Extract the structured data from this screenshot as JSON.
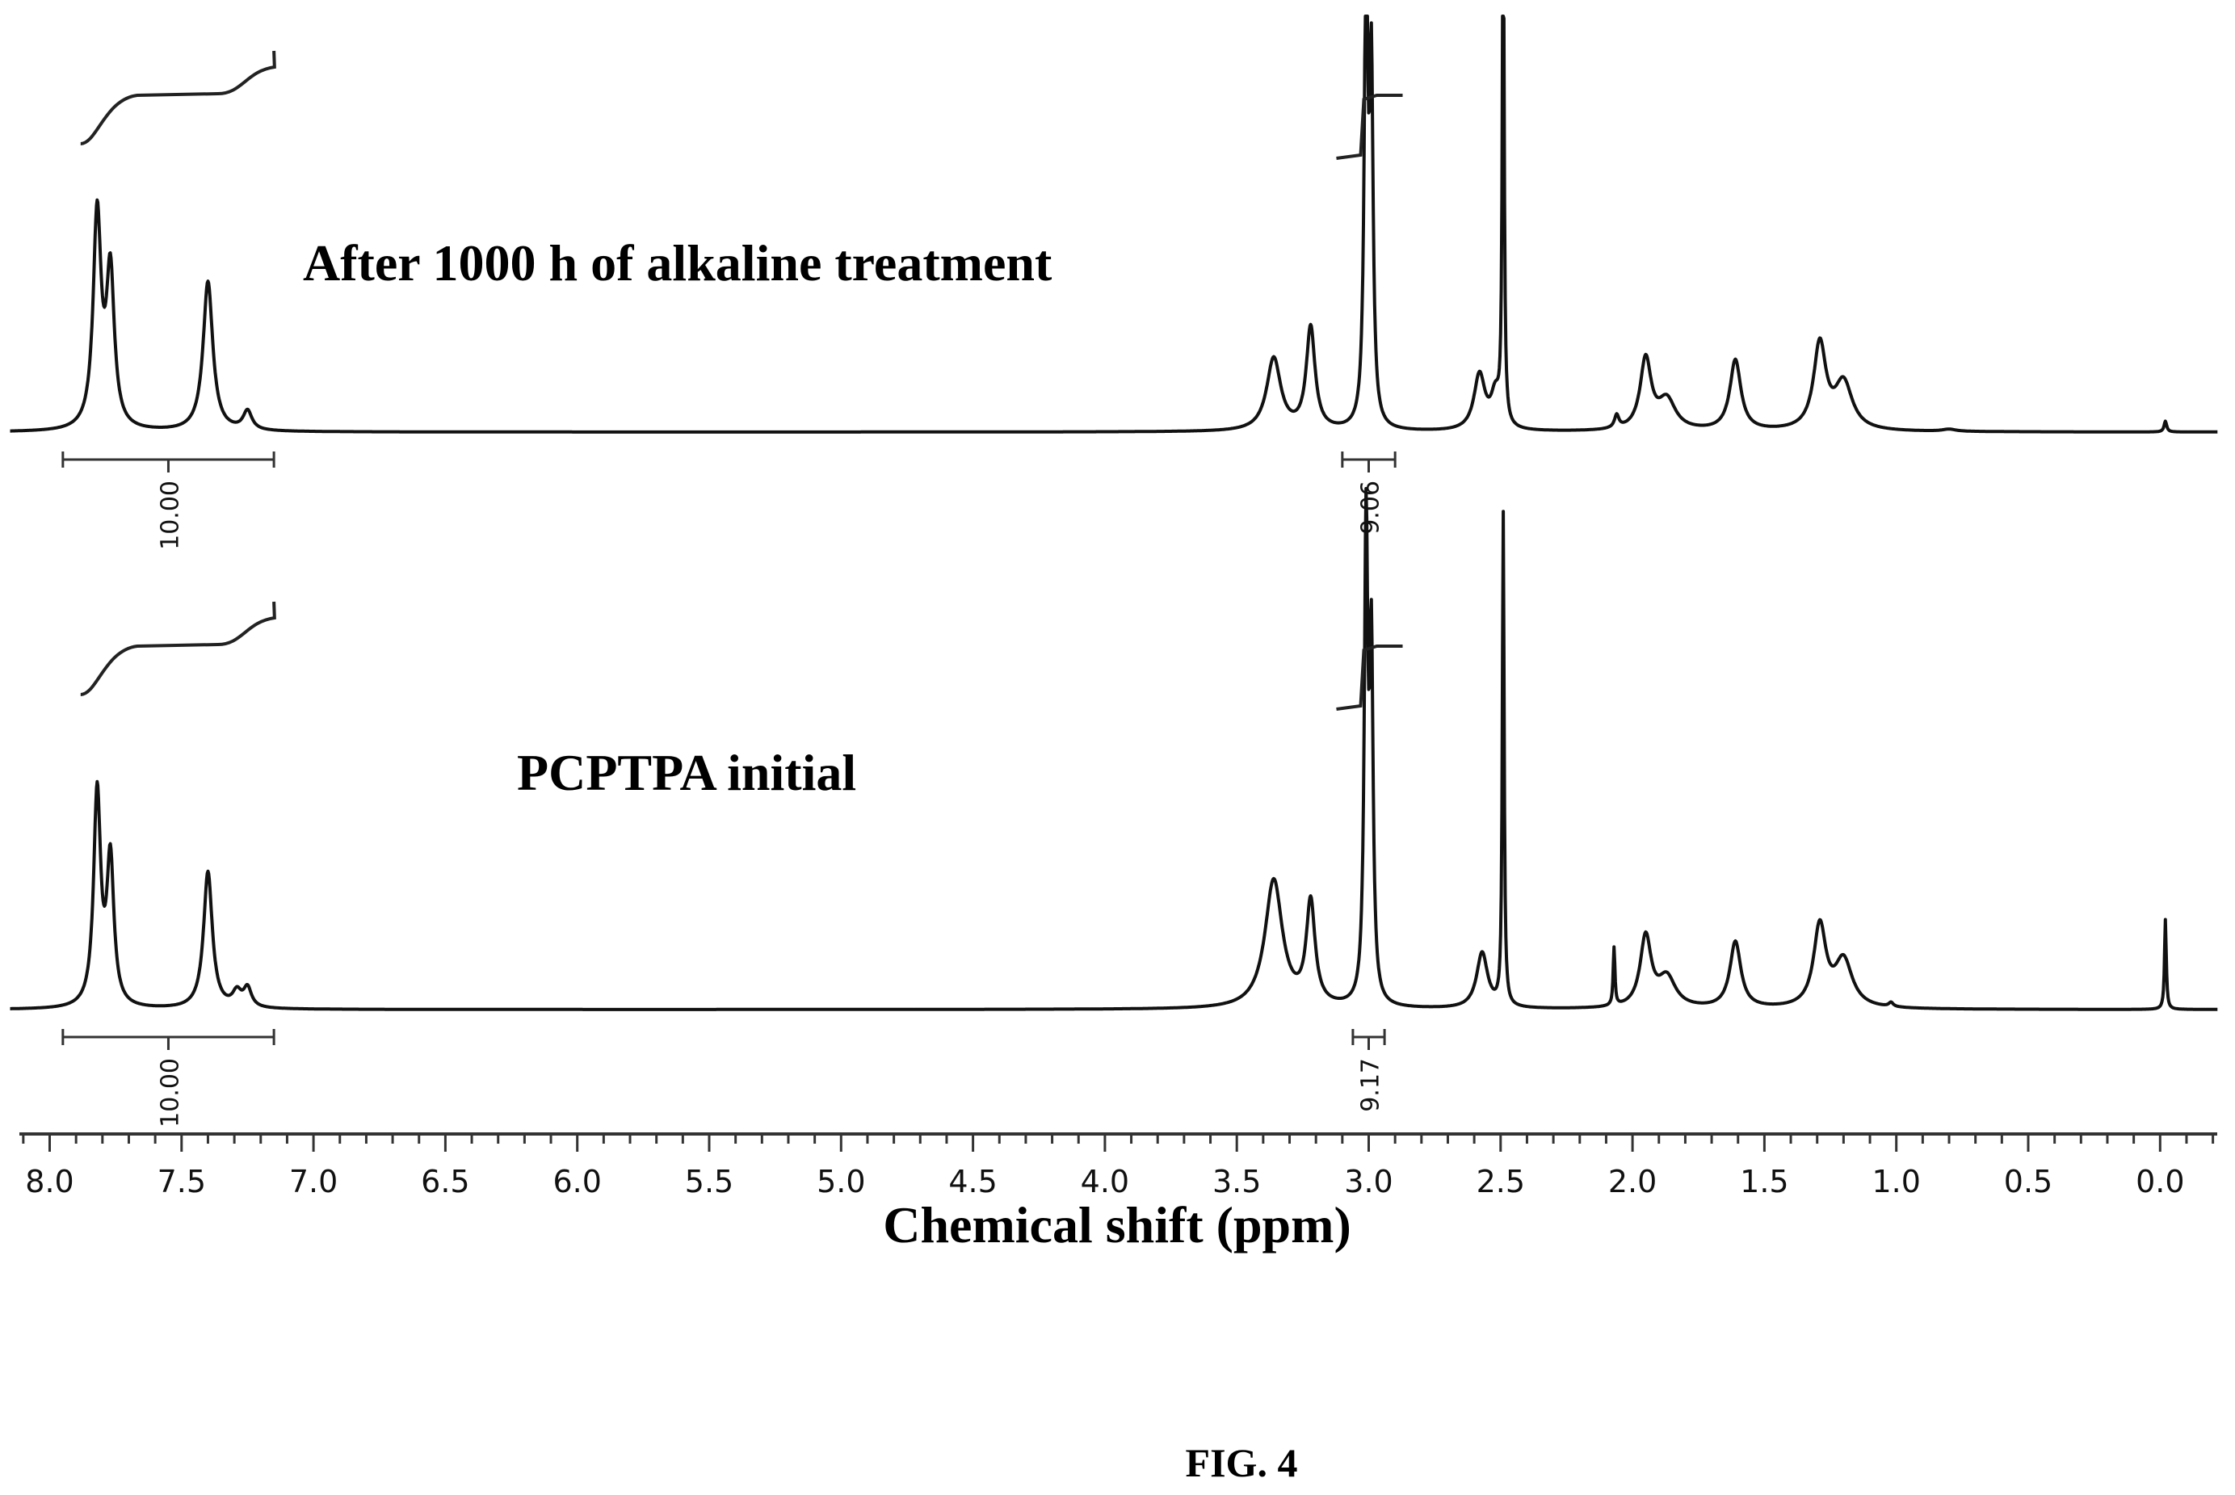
{
  "chart_data": {
    "type": "line",
    "xlabel": "Chemical shift (ppm)",
    "ylabel": "",
    "xlim": [
      8.1,
      -0.2
    ],
    "x_reversed": true,
    "x_ticks": [
      "8.0",
      "7.5",
      "7.0",
      "6.5",
      "6.0",
      "5.5",
      "5.0",
      "4.5",
      "4.0",
      "3.5",
      "3.0",
      "2.5",
      "2.0",
      "1.5",
      "1.0",
      "0.5",
      "0.0"
    ],
    "grid": false,
    "series": [
      {
        "name": "After 1000 h of alkaline treatment",
        "peaks": [
          {
            "x": 7.82,
            "h": 1.0,
            "w": 0.018
          },
          {
            "x": 7.77,
            "h": 0.72,
            "w": 0.018
          },
          {
            "x": 7.4,
            "h": 0.7,
            "w": 0.022
          },
          {
            "x": 7.25,
            "h": 0.09,
            "w": 0.02
          },
          {
            "x": 3.36,
            "h": 0.34,
            "w": 0.032
          },
          {
            "x": 3.22,
            "h": 0.48,
            "w": 0.02
          },
          {
            "x": 3.01,
            "h": 2.2,
            "w": 0.008
          },
          {
            "x": 2.99,
            "h": 1.6,
            "w": 0.008
          },
          {
            "x": 2.58,
            "h": 0.26,
            "w": 0.025
          },
          {
            "x": 2.52,
            "h": 0.15,
            "w": 0.02
          },
          {
            "x": 2.49,
            "h": 2.6,
            "w": 0.004
          },
          {
            "x": 2.06,
            "h": 0.06,
            "w": 0.01
          },
          {
            "x": 1.95,
            "h": 0.33,
            "w": 0.025
          },
          {
            "x": 1.87,
            "h": 0.14,
            "w": 0.04
          },
          {
            "x": 1.61,
            "h": 0.33,
            "w": 0.025
          },
          {
            "x": 1.29,
            "h": 0.4,
            "w": 0.028
          },
          {
            "x": 1.2,
            "h": 0.22,
            "w": 0.04
          },
          {
            "x": 0.8,
            "h": 0.01,
            "w": 0.03
          },
          {
            "x": -0.02,
            "h": 0.05,
            "w": 0.006
          }
        ],
        "integrals": [
          {
            "range": [
              7.95,
              7.15
            ],
            "value": "10.00"
          },
          {
            "range": [
              3.1,
              2.9
            ],
            "value": "9.06"
          }
        ]
      },
      {
        "name": "PCPTPA initial",
        "peaks": [
          {
            "x": 7.82,
            "h": 1.0,
            "w": 0.016
          },
          {
            "x": 7.77,
            "h": 0.68,
            "w": 0.016
          },
          {
            "x": 7.4,
            "h": 0.64,
            "w": 0.02
          },
          {
            "x": 7.29,
            "h": 0.07,
            "w": 0.02
          },
          {
            "x": 7.25,
            "h": 0.09,
            "w": 0.018
          },
          {
            "x": 3.36,
            "h": 0.6,
            "w": 0.04
          },
          {
            "x": 3.22,
            "h": 0.48,
            "w": 0.02
          },
          {
            "x": 3.01,
            "h": 2.2,
            "w": 0.008
          },
          {
            "x": 2.99,
            "h": 1.6,
            "w": 0.008
          },
          {
            "x": 2.57,
            "h": 0.26,
            "w": 0.025
          },
          {
            "x": 2.49,
            "h": 2.3,
            "w": 0.004
          },
          {
            "x": 2.07,
            "h": 0.27,
            "w": 0.004
          },
          {
            "x": 1.95,
            "h": 0.33,
            "w": 0.025
          },
          {
            "x": 1.87,
            "h": 0.14,
            "w": 0.04
          },
          {
            "x": 1.61,
            "h": 0.31,
            "w": 0.025
          },
          {
            "x": 1.29,
            "h": 0.38,
            "w": 0.028
          },
          {
            "x": 1.2,
            "h": 0.22,
            "w": 0.04
          },
          {
            "x": 1.02,
            "h": 0.02,
            "w": 0.01
          },
          {
            "x": -0.02,
            "h": 0.42,
            "w": 0.004
          }
        ],
        "integrals": [
          {
            "range": [
              7.95,
              7.15
            ],
            "value": "10.00"
          },
          {
            "range": [
              3.06,
              2.94
            ],
            "value": "9.17"
          }
        ]
      }
    ]
  },
  "caption": "FIG. 4"
}
